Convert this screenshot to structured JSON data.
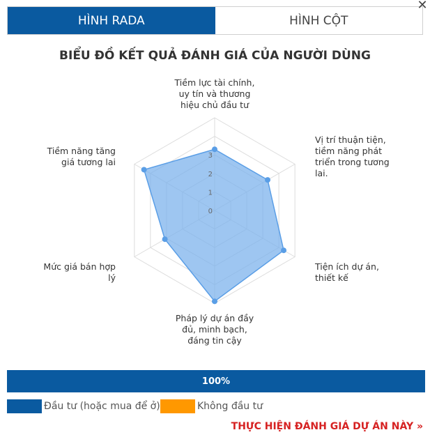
{
  "tabs": [
    {
      "label": "HÌNH RADA",
      "active": true
    },
    {
      "label": "HÌNH CỘT",
      "active": false
    }
  ],
  "close_icon": "close-icon",
  "chart_data": {
    "type": "radar",
    "title": "BIỂU ĐỒ KẾT QUẢ ĐÁNH GIÁ CỦA NGƯỜI DÙNG",
    "categories": [
      "Tiềm lực tài chính, uy tín và thương hiệu chủ đầu tư",
      "Vị trí thuận tiện, tiềm năng phát triển trong tương lai.",
      "Tiện ích dự án, thiết kế",
      "Pháp lý dự án đầy đủ, minh bạch, đáng tin cậy",
      "Mức giá bán hợp lý",
      "Tiềm năng tăng giá tương lai"
    ],
    "values": [
      3.3,
      3.3,
      4.3,
      4.9,
      3.1,
      4.4
    ],
    "scale_max": 5,
    "tick_labels": [
      "0",
      "1",
      "2",
      "3"
    ],
    "fill_color": "#7db3ec",
    "stroke_color": "#5a9ee6"
  },
  "progress": {
    "label": "100%",
    "value": 1.0,
    "color": "#0a5aa0"
  },
  "legend": [
    {
      "label": "Đầu tư (hoặc mua để ở)",
      "color": "#0a5aa0"
    },
    {
      "label": "Không đầu tư",
      "color": "#ff9800"
    }
  ],
  "cta": {
    "label": "THỰC HIỆN ĐÁNH GIÁ DỰ ÁN NÀY »"
  }
}
